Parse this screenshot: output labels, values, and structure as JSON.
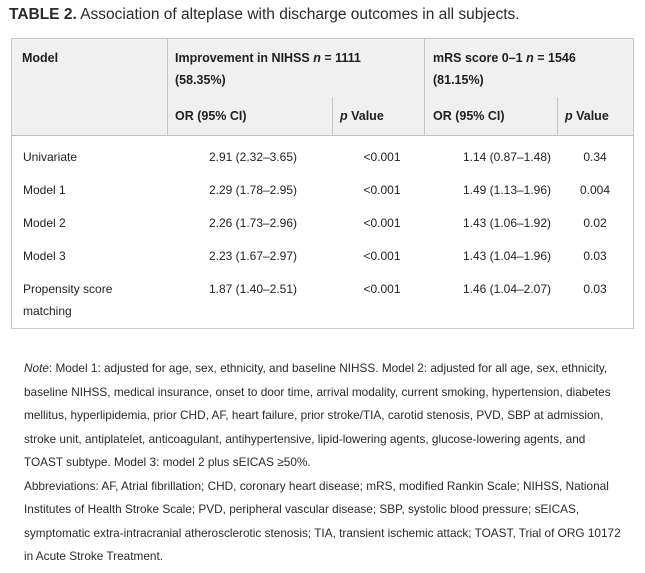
{
  "table": {
    "label": "TABLE 2.",
    "title": "Association of alteplase with discharge outcomes in all subjects.",
    "header": {
      "model": "Model",
      "group1_line1_pre": "Improvement in NIHSS ",
      "group1_n": "n",
      "group1_line1_post": " = 1111",
      "group1_line2": "(58.35%)",
      "group2_line1_pre": "mRS score 0–1 ",
      "group2_n": "n",
      "group2_line1_post": " = 1546",
      "group2_line2": "(81.15%)",
      "or_label": "OR (95% CI)",
      "p_label_italic": "p",
      "p_label_rest": " Value"
    },
    "rows": [
      {
        "model": "Univariate",
        "or1": "2.91 (2.32–3.65)",
        "p1": "<0.001",
        "or2": "1.14 (0.87–1.48)",
        "p2": "0.34"
      },
      {
        "model": "Model 1",
        "or1": "2.29 (1.78–2.95)",
        "p1": "<0.001",
        "or2": "1.49 (1.13–1.96)",
        "p2": "0.004"
      },
      {
        "model": "Model 2",
        "or1": "2.26 (1.73–2.96)",
        "p1": "<0.001",
        "or2": "1.43 (1.06–1.92)",
        "p2": "0.02"
      },
      {
        "model": "Model 3",
        "or1": "2.23 (1.67–2.97)",
        "p1": "<0.001",
        "or2": "1.43 (1.04–1.96)",
        "p2": "0.03"
      },
      {
        "model": "Propensity score matching",
        "or1": "1.87 (1.40–2.51)",
        "p1": "<0.001",
        "or2": "1.46 (1.04–2.07)",
        "p2": "0.03"
      }
    ]
  },
  "notes": {
    "note_label": "Note",
    "note_text": ": Model 1: adjusted for age, sex, ethnicity, and baseline NIHSS. Model 2: adjusted for all age, sex, ethnicity, baseline NIHSS, medical insurance, onset to door time, arrival modality, current smoking, hypertension, diabetes mellitus, hyperlipidemia, prior CHD, AF, heart failure, prior stroke/TIA, carotid stenosis, PVD, SBP at admission, stroke unit, antiplatelet, anticoagulant, antihypertensive, lipid-lowering agents, glucose-lowering agents, and TOAST subtype. Model 3: model 2 plus sEICAS ≥50%.",
    "abbreviations": "Abbreviations: AF, Atrial fibrillation; CHD, coronary heart disease; mRS, modified Rankin Scale; NIHSS, National Institutes of Health Stroke Scale; PVD, peripheral vascular disease; SBP, systolic blood pressure; sEICAS, symptomatic extra-intracranial atherosclerotic stenosis; TIA, transient ischemic attack; TOAST, Trial of ORG 10172 in Acute Stroke Treatment."
  }
}
